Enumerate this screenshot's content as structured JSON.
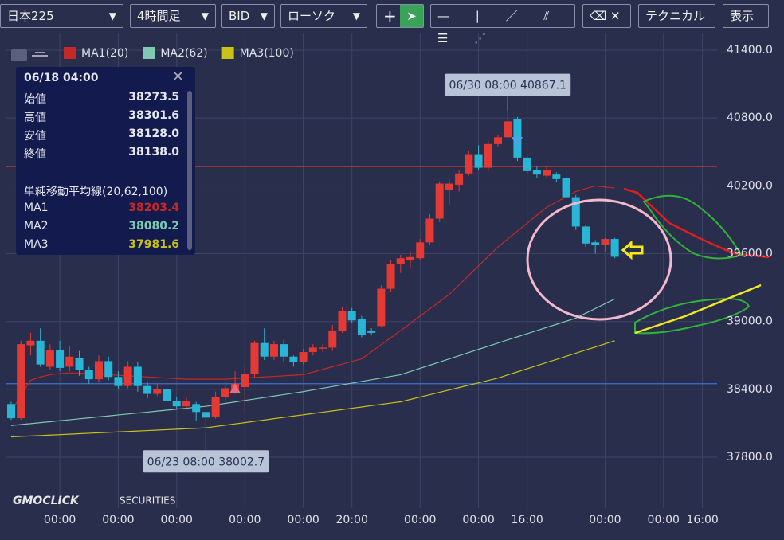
{
  "toolbar": {
    "symbol": "日本225",
    "timeframe": "4時間足",
    "price_type": "BID",
    "chart_style": "ローソク",
    "technical": "テクニカル",
    "display": "表示"
  },
  "tooltip": {
    "time": "06/18 04:00",
    "rows": [
      [
        "始値",
        "38273.5"
      ],
      [
        "高値",
        "38301.6"
      ],
      [
        "安値",
        "38128.0"
      ],
      [
        "終値",
        "38138.0"
      ]
    ],
    "section": "単純移動平均線(20,62,100)",
    "ma_rows": [
      [
        "MA1",
        "38203.4"
      ],
      [
        "MA2",
        "38080.2"
      ],
      [
        "MA3",
        "37981.6"
      ]
    ]
  },
  "logo": {
    "brand": "GMOCLICK",
    "sub": "SECURITIES"
  },
  "chart_data": {
    "type": "candlestick",
    "categories": [
      null,
      null,
      null,
      null,
      null,
      "00:00",
      null,
      null,
      null,
      null,
      null,
      "00:00",
      null,
      null,
      null,
      null,
      null,
      "00:00",
      null,
      null,
      null,
      null,
      null,
      null,
      "00:00",
      null,
      null,
      null,
      null,
      null,
      "00:00",
      null,
      null,
      null,
      null,
      "20:00",
      null,
      null,
      null,
      null,
      null,
      null,
      "00:00",
      null,
      null,
      null,
      null,
      null,
      "00:00",
      null,
      null,
      null,
      null,
      "16:00",
      null,
      null,
      null,
      null,
      null,
      null,
      null,
      "00:00",
      null,
      null,
      null,
      null,
      null,
      "00:00",
      null,
      null,
      null,
      "16:00"
    ],
    "open": [
      38270,
      38145,
      38790,
      38830,
      38600,
      38750,
      38600,
      38680,
      38570,
      38490,
      38650,
      38510,
      38430,
      38600,
      38430,
      38360,
      38400,
      38300,
      38250,
      38270,
      38200,
      38160,
      38330,
      38400,
      38420,
      38540,
      38810,
      38690,
      38800,
      38690,
      38640,
      38730,
      38760,
      38770,
      38920,
      39090,
      39020,
      38920,
      38960,
      39290,
      39510,
      39540,
      39560,
      39700,
      39910,
      40160,
      40210,
      40310,
      40480,
      40360,
      40570,
      40630,
      40790,
      40450,
      40340,
      40290,
      40300,
      40270,
      40100,
      39840,
      39700,
      39680,
      39730,
      null,
      null,
      null,
      null,
      null,
      null,
      null,
      null,
      null
    ],
    "high": [
      38290,
      38830,
      38900,
      38940,
      38800,
      38830,
      38780,
      38740,
      38600,
      38700,
      38690,
      38560,
      38650,
      38640,
      38470,
      38450,
      38440,
      38330,
      38330,
      38290,
      38210,
      38380,
      38470,
      38560,
      38600,
      38830,
      38940,
      38830,
      38840,
      38700,
      38760,
      38800,
      38800,
      38970,
      39130,
      39120,
      39050,
      38940,
      39320,
      39540,
      39590,
      39620,
      39730,
      39950,
      40240,
      40260,
      40340,
      40510,
      40560,
      40600,
      40650,
      40867.1,
      40810,
      40470,
      40370,
      40370,
      40320,
      40340,
      40120,
      39850,
      39720,
      39740,
      39740,
      null,
      null,
      null,
      null,
      null,
      null,
      null,
      null,
      null
    ],
    "low": [
      38130,
      38130,
      38700,
      38600,
      38570,
      38560,
      38560,
      38520,
      38450,
      38460,
      38480,
      38400,
      38410,
      38380,
      38320,
      38340,
      38280,
      38220,
      38220,
      38120,
      38002.7,
      38140,
      38300,
      38360,
      38220,
      38500,
      38660,
      38660,
      38640,
      38600,
      38620,
      38700,
      38730,
      38740,
      38900,
      38990,
      38860,
      38880,
      38950,
      39260,
      39430,
      39480,
      39540,
      39680,
      39880,
      40030,
      40150,
      40290,
      40340,
      40330,
      40550,
      40620,
      40420,
      40300,
      40270,
      40270,
      40230,
      40070,
      39810,
      39660,
      39600,
      39620,
      39560,
      null,
      null,
      null,
      null,
      null,
      null,
      null,
      null,
      null
    ],
    "close": [
      38145,
      38800,
      38830,
      38620,
      38750,
      38590,
      38690,
      38570,
      38490,
      38650,
      38510,
      38430,
      38600,
      38430,
      38360,
      38400,
      38300,
      38250,
      38300,
      38200,
      38150,
      38330,
      38410,
      38450,
      38540,
      38810,
      38690,
      38800,
      38690,
      38640,
      38730,
      38770,
      38770,
      38920,
      39090,
      39010,
      38880,
      38900,
      39290,
      39510,
      39560,
      39570,
      39700,
      39910,
      40220,
      40220,
      40310,
      40480,
      40360,
      40570,
      40630,
      40770,
      40450,
      40330,
      40300,
      40340,
      40260,
      40100,
      39840,
      39690,
      39680,
      39730,
      39573,
      null,
      null,
      null,
      null,
      null,
      null,
      null,
      null,
      null
    ],
    "up_color": "#e53935",
    "down_color": "#29b6d6",
    "series": [
      {
        "name": "MA1(20)",
        "color": "#c62828",
        "values": [
          38200,
          38350,
          38480,
          38510,
          38530,
          38540,
          38545,
          38545,
          38540,
          38535,
          38530,
          38525,
          38520,
          38515,
          38510,
          38505,
          38500,
          38495,
          38490,
          38490,
          38490,
          38490,
          38490,
          38495,
          38500,
          38505,
          38510,
          38515,
          38520,
          38525,
          38530,
          38553,
          38577,
          38600,
          38623,
          38647,
          38670,
          38733,
          38795,
          38858,
          38920,
          38984,
          39048,
          39112,
          39176,
          39240,
          39324,
          39408,
          39492,
          39576,
          39660,
          39730,
          39800,
          39870,
          39940,
          40010,
          40057,
          40103,
          40150,
          40175,
          40200,
          40190,
          40180,
          null,
          null,
          null,
          null,
          null,
          null,
          null,
          null,
          null
        ]
      },
      {
        "name": "MA2(62)",
        "color": "#7ec8b4",
        "values": [
          38080,
          38089,
          38097,
          38106,
          38114,
          38123,
          38131,
          38140,
          38148,
          38157,
          38165,
          38174,
          38182,
          38191,
          38199,
          38208,
          38216,
          38225,
          38233,
          38242,
          38250,
          38263,
          38276,
          38289,
          38302,
          38315,
          38328,
          38341,
          38354,
          38367,
          38380,
          38395,
          38410,
          38425,
          38440,
          38455,
          38470,
          38485,
          38500,
          38515,
          38530,
          38558,
          38586,
          38614,
          38642,
          38670,
          38698,
          38726,
          38754,
          38782,
          38810,
          38838,
          38865,
          38893,
          38920,
          38948,
          38975,
          39003,
          39030,
          39073,
          39115,
          39158,
          39200,
          null,
          null,
          null,
          null,
          null,
          null,
          null,
          null,
          null
        ]
      },
      {
        "name": "MA3(100)",
        "color": "#c9c21a",
        "values": [
          37980,
          37984,
          37988,
          37992,
          37996,
          38000,
          38004,
          38008,
          38012,
          38016,
          38020,
          38024,
          38028,
          38032,
          38036,
          38040,
          38044,
          38048,
          38052,
          38056,
          38060,
          38072,
          38083,
          38095,
          38106,
          38118,
          38129,
          38141,
          38152,
          38164,
          38175,
          38187,
          38198,
          38210,
          38221,
          38233,
          38244,
          38256,
          38267,
          38279,
          38290,
          38311,
          38332,
          38353,
          38374,
          38395,
          38416,
          38437,
          38458,
          38479,
          38500,
          38528,
          38555,
          38583,
          38610,
          38638,
          38665,
          38693,
          38720,
          38748,
          38775,
          38803,
          38830,
          null,
          null,
          null,
          null,
          null,
          null,
          null,
          null,
          null
        ]
      }
    ],
    "ylim": [
      37420,
      41548
    ],
    "yticks": [
      {
        "value": 41400,
        "label": "41400.0"
      },
      {
        "value": 40800,
        "label": "40800.0"
      },
      {
        "value": 40200,
        "label": "40200.0"
      },
      {
        "value": 39600,
        "label": "39600.0"
      },
      {
        "value": 39000,
        "label": "39000.0"
      },
      {
        "value": 38400,
        "label": "38400.0"
      },
      {
        "value": 37800,
        "label": "37800.0"
      }
    ],
    "hlines": [
      {
        "value": 40370,
        "color": "#9c3b3b"
      },
      {
        "value": 38450,
        "color": "#3f6fd0"
      }
    ],
    "annotations": [
      {
        "label": "06/23 08:00 38002.7",
        "index": 20,
        "at": "low"
      },
      {
        "label": "06/30 08:00 40867.1",
        "index": 51,
        "at": "high"
      }
    ],
    "grid": true
  }
}
